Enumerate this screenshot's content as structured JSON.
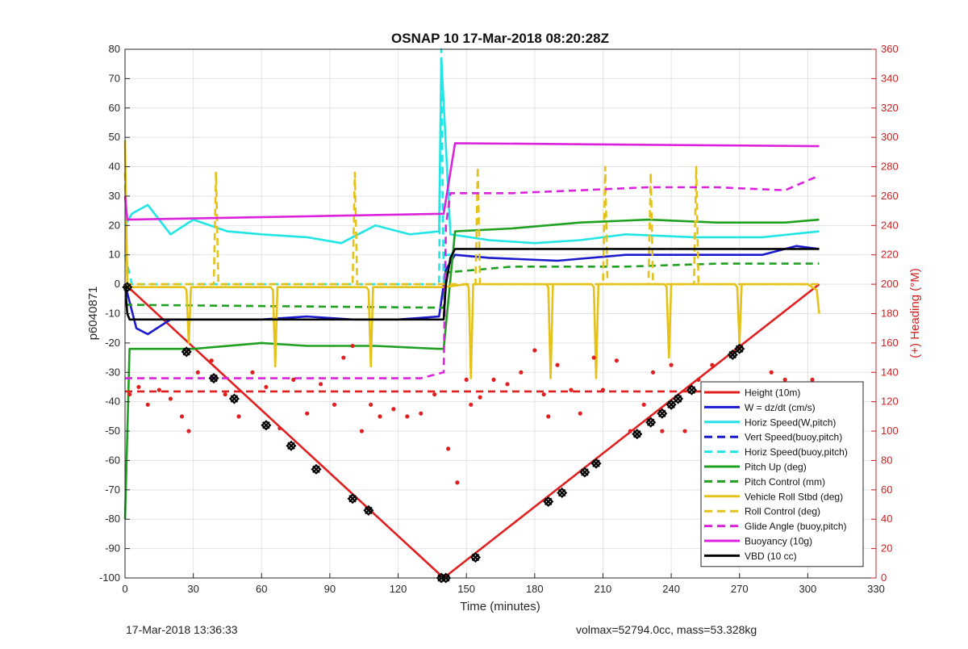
{
  "footer": {
    "left_timestamp": "17-Mar-2018 13:36:33",
    "right_info": "volmax=52794.0cc, mass=53.328kg"
  },
  "chart_data": {
    "type": "line",
    "title": "OSNAP 10 17-Mar-2018 08:20:28Z",
    "xlabel": "Time (minutes)",
    "ylabel_left": "p6040871",
    "ylabel_right": "(+) Heading (°M)",
    "xlim": [
      0,
      330
    ],
    "ylim_left": [
      -100,
      80
    ],
    "ylim_right": [
      0,
      360
    ],
    "x_ticks": [
      0,
      30,
      60,
      90,
      120,
      150,
      180,
      210,
      240,
      270,
      300,
      330
    ],
    "y_ticks_left": [
      80,
      70,
      60,
      50,
      40,
      30,
      20,
      10,
      0,
      -10,
      -20,
      -30,
      -40,
      -50,
      -60,
      -70,
      -80,
      -90,
      -100
    ],
    "y_ticks_right": [
      360,
      340,
      320,
      300,
      280,
      260,
      240,
      220,
      200,
      180,
      160,
      140,
      120,
      100,
      80,
      60,
      40,
      20,
      0
    ],
    "grid": true,
    "legend_position": "bottom-right",
    "colors": {
      "red": "#e02020",
      "blue": "#1a1acc",
      "cyan": "#22e5e5",
      "green": "#20a020",
      "yellow": "#e5c21a",
      "magenta": "#dd22dd",
      "black": "#000000",
      "right_axis": "#cc2020"
    },
    "series": [
      {
        "name": "Height (10m)",
        "color": "red",
        "style": "solid",
        "axis": "left",
        "x": [
          0,
          140,
          305
        ],
        "y": [
          0,
          -100,
          0
        ]
      },
      {
        "name": "W = dz/dt (cm/s)",
        "color": "blue",
        "style": "solid",
        "axis": "left",
        "x": [
          0,
          5,
          10,
          20,
          30,
          45,
          60,
          80,
          100,
          120,
          138,
          141,
          145,
          160,
          190,
          220,
          250,
          280,
          295,
          305
        ],
        "y": [
          0,
          -15,
          -17,
          -12,
          -12,
          -12,
          -12,
          -11,
          -12,
          -12,
          -11,
          5,
          10,
          9,
          8,
          10,
          10,
          10,
          13,
          12
        ]
      },
      {
        "name": "Horiz Speed(W,pitch)",
        "color": "cyan",
        "style": "solid",
        "axis": "left",
        "x": [
          0,
          3,
          10,
          20,
          30,
          45,
          60,
          80,
          95,
          110,
          125,
          138,
          139,
          143,
          160,
          180,
          200,
          220,
          250,
          280,
          305
        ],
        "y": [
          20,
          24,
          27,
          17,
          22,
          18,
          17,
          16,
          14,
          20,
          17,
          18,
          77,
          17,
          15,
          14,
          15,
          17,
          16,
          16,
          18
        ]
      },
      {
        "name": "Vert Speed(buoy,pitch)",
        "color": "blue",
        "style": "dashed",
        "axis": "left",
        "x": [],
        "y": []
      },
      {
        "name": "Horiz Speed(buoy,pitch)",
        "color": "cyan",
        "style": "dashed",
        "axis": "left",
        "x": [
          0,
          3,
          138,
          139,
          140,
          141,
          145
        ],
        "y": [
          10,
          0,
          0,
          80,
          0,
          10,
          10
        ]
      },
      {
        "name": "Pitch Up (deg)",
        "color": "green",
        "style": "solid",
        "axis": "left",
        "x": [
          0,
          2,
          30,
          60,
          80,
          110,
          138,
          140,
          145,
          170,
          200,
          230,
          260,
          290,
          305
        ],
        "y": [
          -80,
          -22,
          -22,
          -20,
          -21,
          -21,
          -22,
          -22,
          18,
          19,
          21,
          22,
          21,
          21,
          22
        ]
      },
      {
        "name": "Pitch Control (mm)",
        "color": "green",
        "style": "dashed",
        "axis": "left",
        "x": [
          0,
          140,
          141,
          170,
          220,
          260,
          305
        ],
        "y": [
          -7,
          -8,
          4,
          6,
          6,
          7,
          7
        ]
      },
      {
        "name": "Vehicle Roll Stbd (deg)",
        "color": "yellow",
        "style": "solid",
        "axis": "left",
        "x": [
          0,
          1,
          2,
          26,
          27,
          28,
          29,
          64,
          65,
          66,
          67,
          106,
          107,
          108,
          109,
          140,
          150,
          151,
          152,
          153,
          185,
          186,
          187,
          188,
          205,
          206,
          207,
          208,
          237,
          238,
          239,
          240,
          268,
          269,
          270,
          271,
          300,
          304,
          305
        ],
        "y": [
          49,
          0,
          -1,
          -1,
          -2,
          -20,
          -1,
          -1,
          -2,
          -28,
          -1,
          -1,
          -2,
          -28,
          -1,
          -1,
          0,
          -1,
          -32,
          0,
          0,
          -1,
          -32,
          0,
          0,
          -1,
          -32,
          0,
          0,
          -1,
          -25,
          0,
          0,
          -1,
          -20,
          0,
          0,
          -2,
          -10
        ]
      },
      {
        "name": "Roll Control (deg)",
        "color": "yellow",
        "style": "dashed",
        "axis": "left",
        "x": [
          0,
          1,
          2,
          39,
          40,
          41,
          100,
          101,
          102,
          154,
          155,
          156,
          210,
          211,
          212,
          230,
          231,
          232,
          250,
          251,
          252,
          305
        ],
        "y": [
          38,
          0,
          0,
          0,
          38,
          0,
          0,
          38,
          0,
          0,
          40,
          0,
          0,
          40,
          0,
          0,
          38,
          0,
          0,
          40,
          0,
          0
        ]
      },
      {
        "name": "Glide Angle (buoy,pitch)",
        "color": "magenta",
        "style": "dashed",
        "axis": "left",
        "x": [
          0,
          10,
          40,
          70,
          100,
          130,
          140,
          141,
          143,
          170,
          200,
          230,
          260,
          290,
          305
        ],
        "y": [
          -32,
          -32,
          -32,
          -32,
          -32,
          -32,
          -30,
          20,
          31,
          31,
          32,
          33,
          33,
          32,
          37
        ]
      },
      {
        "name": "Buoyancy (10g)",
        "color": "magenta",
        "style": "solid",
        "axis": "left",
        "x": [
          0,
          1,
          140,
          145,
          305
        ],
        "y": [
          30,
          22,
          24,
          48,
          47
        ]
      },
      {
        "name": "VBD (10 cc)",
        "color": "black",
        "style": "solid",
        "axis": "left",
        "x": [
          0,
          1,
          2,
          140,
          141,
          143,
          145,
          305
        ],
        "y": [
          0,
          -10,
          -12,
          -12,
          0,
          9,
          12,
          12
        ]
      },
      {
        "name": "",
        "color": "red",
        "style": "dashed",
        "axis": "right",
        "x": [
          0,
          305
        ],
        "y": [
          127,
          127
        ]
      },
      {
        "name": "",
        "color": "red",
        "style": "dots",
        "axis": "right",
        "x": [
          2,
          6,
          10,
          15,
          20,
          25,
          28,
          32,
          38,
          44,
          50,
          56,
          62,
          68,
          74,
          80,
          86,
          92,
          96,
          100,
          104,
          108,
          112,
          118,
          124,
          130,
          136,
          142,
          146,
          150,
          152,
          156,
          162,
          168,
          174,
          180,
          184,
          186,
          190,
          196,
          200,
          206,
          210,
          216,
          222,
          228,
          232,
          236,
          240,
          246,
          252,
          258,
          264,
          270,
          278,
          284,
          290,
          296,
          302,
          305
        ],
        "y": [
          125,
          130,
          118,
          128,
          122,
          110,
          100,
          140,
          148,
          125,
          110,
          140,
          130,
          102,
          135,
          112,
          132,
          118,
          150,
          158,
          100,
          118,
          110,
          115,
          110,
          112,
          125,
          88,
          65,
          135,
          118,
          123,
          135,
          132,
          140,
          155,
          125,
          110,
          145,
          128,
          112,
          150,
          128,
          148,
          100,
          118,
          140,
          100,
          145,
          100,
          135,
          145,
          130,
          115,
          128,
          140,
          135,
          120,
          135,
          128
        ]
      },
      {
        "name": "",
        "color": "black",
        "style": "markers",
        "axis": "left",
        "x": [
          1,
          27,
          39,
          48,
          62,
          73,
          84,
          100,
          107,
          139,
          141,
          154,
          186,
          192,
          202,
          207,
          225,
          231,
          236,
          240,
          243,
          249,
          267,
          270
        ],
        "y": [
          -1,
          -23,
          -32,
          -39,
          -48,
          -55,
          -63,
          -73,
          -77,
          -100,
          -100,
          -93,
          -74,
          -71,
          -64,
          -61,
          -51,
          -47,
          -44,
          -41,
          -39,
          -36,
          -24,
          -22
        ]
      }
    ]
  }
}
